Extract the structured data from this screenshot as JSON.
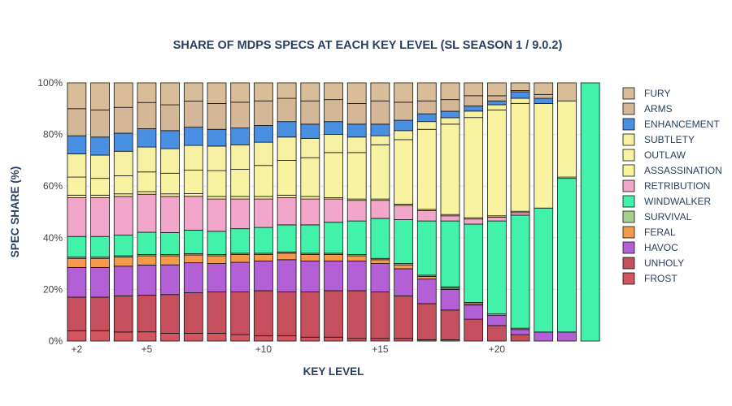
{
  "chart_data": {
    "type": "bar",
    "stacked": true,
    "title": "SHARE OF MDPS SPECS AT EACH KEY LEVEL (SL SEASON 1 / 9.0.2)",
    "xlabel": "KEY LEVEL",
    "ylabel": "SPEC SHARE (%)",
    "ylim": [
      0,
      100
    ],
    "y_ticks": [
      0,
      20,
      40,
      60,
      80,
      100
    ],
    "y_tick_labels": [
      "0%",
      "20%",
      "40%",
      "60%",
      "80%",
      "100%"
    ],
    "categories": [
      2,
      3,
      4,
      5,
      6,
      7,
      8,
      9,
      10,
      11,
      12,
      13,
      14,
      15,
      16,
      17,
      18,
      19,
      20,
      21,
      22,
      23,
      24
    ],
    "x_ticks": [
      2,
      5,
      10,
      15,
      20
    ],
    "x_tick_labels": [
      "+2",
      "+5",
      "+10",
      "+15",
      "+20"
    ],
    "legend_position": "right",
    "series": [
      {
        "name": "FROST",
        "color": "#d2555f",
        "values": [
          4,
          4,
          3.5,
          3.5,
          3,
          3,
          3,
          2.5,
          2,
          2,
          1.5,
          1.5,
          1,
          1,
          1,
          0.5,
          0.5,
          0,
          0,
          0,
          0,
          0,
          0
        ]
      },
      {
        "name": "UNHOLY",
        "color": "#c54f5c",
        "values": [
          13,
          13,
          14,
          14,
          15,
          15.5,
          16,
          16.5,
          17.5,
          17,
          17.5,
          18,
          18.5,
          18,
          16.5,
          14,
          11.5,
          8.5,
          6,
          2.5,
          0,
          0,
          0
        ]
      },
      {
        "name": "HAVOC",
        "color": "#b35fd6",
        "values": [
          11.5,
          11.5,
          11.5,
          11.5,
          11.5,
          11.5,
          11,
          11.5,
          11.5,
          12.5,
          12,
          11.5,
          11.5,
          11,
          10.5,
          9.5,
          8,
          5.5,
          4,
          2,
          3.5,
          3.5,
          0
        ]
      },
      {
        "name": "FERAL",
        "color": "#f59a4a",
        "values": [
          3.5,
          3.5,
          3.5,
          3.5,
          3.5,
          3,
          3,
          3,
          2.5,
          2.5,
          2.5,
          2.5,
          2,
          1.5,
          1.5,
          1,
          0.5,
          0.5,
          0,
          0,
          0,
          0,
          0
        ]
      },
      {
        "name": "SURVIVAL",
        "color": "#a8d08d",
        "values": [
          0.5,
          0.5,
          0.5,
          0.5,
          0.5,
          0.5,
          0.5,
          0.5,
          0.5,
          0.5,
          0.5,
          0.5,
          0.5,
          0.5,
          0.5,
          0.5,
          0.5,
          0.5,
          0.5,
          0.5,
          0,
          0,
          0
        ]
      },
      {
        "name": "WINDWALKER",
        "color": "#42f2aa",
        "values": [
          8,
          8,
          8,
          8.5,
          8.5,
          9,
          9,
          9.5,
          10,
          10.5,
          11,
          12,
          13,
          15.5,
          17,
          21,
          25.5,
          30.5,
          36,
          44,
          48,
          59.5,
          100
        ]
      },
      {
        "name": "RETRIBUTION",
        "color": "#f2a6c9",
        "values": [
          15,
          15,
          15,
          14.5,
          14,
          13,
          12.5,
          11.5,
          11,
          10.5,
          10,
          9,
          8,
          7,
          5.5,
          4,
          2,
          2,
          1.5,
          1,
          0,
          0,
          0
        ]
      },
      {
        "name": "ASSASSINATION",
        "color": "#f9f49e",
        "values": [
          1,
          1,
          1,
          1,
          1,
          1,
          1,
          1,
          1,
          1,
          1,
          0.5,
          0.5,
          0.5,
          0.5,
          0.5,
          0.5,
          0.5,
          0.5,
          0.5,
          0,
          0.5,
          0
        ]
      },
      {
        "name": "OUTLAW",
        "color": "#f7f3a0",
        "values": [
          7,
          6.5,
          7,
          7.5,
          8,
          9,
          10,
          10.5,
          12,
          13.5,
          15,
          17.5,
          18,
          21,
          25,
          31,
          35,
          39,
          41,
          42,
          40.5,
          29.5,
          0
        ]
      },
      {
        "name": "SUBTLETY",
        "color": "#f5f0a2",
        "values": [
          9,
          9,
          9.5,
          9.5,
          9.5,
          9.5,
          9.5,
          9.5,
          9,
          9,
          7.5,
          7,
          6,
          3.5,
          3.5,
          3,
          2.5,
          2.5,
          2,
          2,
          0,
          0,
          0
        ]
      },
      {
        "name": "ENHANCEMENT",
        "color": "#4a90e2",
        "values": [
          7,
          7,
          7,
          7,
          7,
          7,
          6.5,
          6.5,
          6.5,
          6,
          5.5,
          5,
          5,
          4.5,
          4,
          3,
          2.5,
          2,
          1.5,
          2.5,
          2,
          0,
          0
        ]
      },
      {
        "name": "ARMS",
        "color": "#d4b797",
        "values": [
          10.5,
          10.5,
          10,
          10,
          10,
          10,
          10,
          10,
          9.5,
          9,
          9,
          8.5,
          8,
          9,
          7,
          5,
          4.5,
          4,
          2,
          0.5,
          1.5,
          0,
          0
        ]
      },
      {
        "name": "FURY",
        "color": "#d9bc98",
        "values": [
          10,
          10.5,
          9.5,
          7.5,
          8.5,
          7,
          8,
          7.5,
          7,
          6,
          7,
          6.5,
          8,
          7,
          7.5,
          7,
          6.5,
          5,
          5,
          3,
          4.5,
          7,
          0
        ]
      }
    ]
  }
}
